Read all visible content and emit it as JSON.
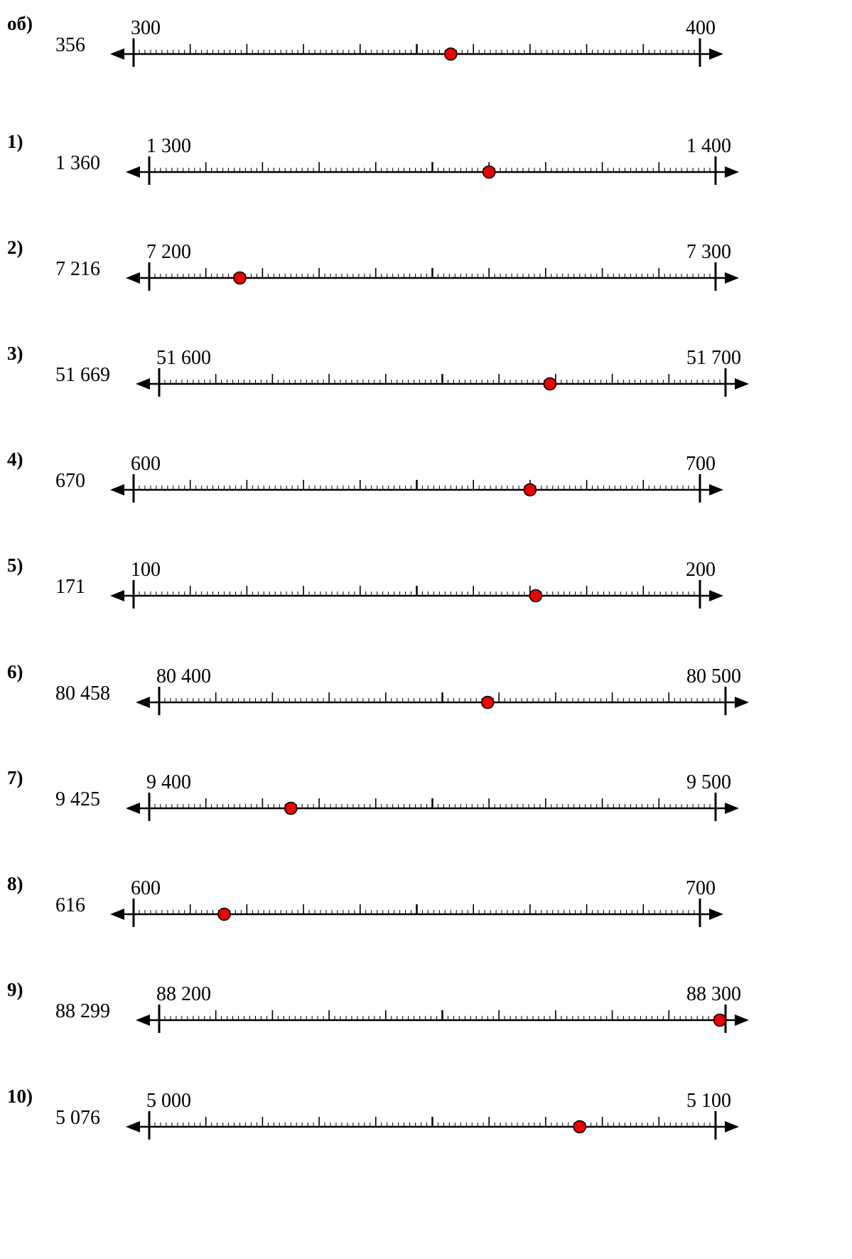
{
  "worksheet": {
    "rows": [
      {
        "label": "об)",
        "value_text": "356",
        "start_text": "300",
        "end_text": "400",
        "start": 300,
        "end": 400,
        "point": 356
      },
      {
        "label": "1)",
        "value_text": "1 360",
        "start_text": "1 300",
        "end_text": "1 400",
        "start": 1300,
        "end": 1400,
        "point": 1360
      },
      {
        "label": "2)",
        "value_text": "7 216",
        "start_text": "7 200",
        "end_text": "7 300",
        "start": 7200,
        "end": 7300,
        "point": 7216
      },
      {
        "label": "3)",
        "value_text": "51 669",
        "start_text": "51 600",
        "end_text": "51 700",
        "start": 51600,
        "end": 51700,
        "point": 51669
      },
      {
        "label": "4)",
        "value_text": "670",
        "start_text": "600",
        "end_text": "700",
        "start": 600,
        "end": 700,
        "point": 670
      },
      {
        "label": "5)",
        "value_text": "171",
        "start_text": "100",
        "end_text": "200",
        "start": 100,
        "end": 200,
        "point": 171
      },
      {
        "label": "6)",
        "value_text": "80 458",
        "start_text": "80 400",
        "end_text": "80 500",
        "start": 80400,
        "end": 80500,
        "point": 80458
      },
      {
        "label": "7)",
        "value_text": "9 425",
        "start_text": "9 400",
        "end_text": "9 500",
        "start": 9400,
        "end": 9500,
        "point": 9425
      },
      {
        "label": "8)",
        "value_text": "616",
        "start_text": "600",
        "end_text": "700",
        "start": 600,
        "end": 700,
        "point": 616
      },
      {
        "label": "9)",
        "value_text": "88 299",
        "start_text": "88 200",
        "end_text": "88 300",
        "start": 88200,
        "end": 88300,
        "point": 88299
      },
      {
        "label": "10)",
        "value_text": "5 076",
        "start_text": "5 000",
        "end_text": "5 100",
        "start": 5000,
        "end": 5100,
        "point": 5076
      }
    ],
    "colors": {
      "line": "#000000",
      "point_fill": "#ee0000",
      "point_stroke": "#000000"
    }
  }
}
